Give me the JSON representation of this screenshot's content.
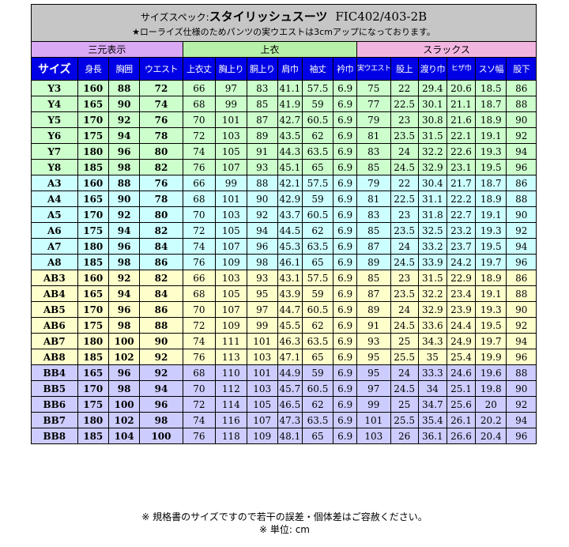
{
  "title": {
    "prefix": "サイズスペック:",
    "main": "スタイリッシュスーツ",
    "code": "FIC402/403-2B",
    "note": "★ローライズ仕様のためパンツの実ウエストは3cmアップになっております。"
  },
  "groups": [
    "三元表示",
    "上衣",
    "スラックス"
  ],
  "headers": [
    "サイズ",
    "身長",
    "胸囲",
    "ウエスト",
    "上衣丈",
    "胸上り",
    "胴上り",
    "肩巾",
    "袖丈",
    "衿巾",
    "実ウエスト",
    "股上",
    "渡り巾",
    "ヒザ巾",
    "スソ幅",
    "股下"
  ],
  "rows": [
    {
      "g": "Y",
      "c": [
        "Y3",
        "160",
        "88",
        "72",
        "66",
        "97",
        "83",
        "41.1",
        "57.5",
        "6.9",
        "75",
        "22",
        "29.4",
        "20.6",
        "18.5",
        "86"
      ]
    },
    {
      "g": "Y",
      "c": [
        "Y4",
        "165",
        "90",
        "74",
        "68",
        "99",
        "85",
        "41.9",
        "59",
        "6.9",
        "77",
        "22.5",
        "30.1",
        "21.1",
        "18.7",
        "88"
      ]
    },
    {
      "g": "Y",
      "c": [
        "Y5",
        "170",
        "92",
        "76",
        "70",
        "101",
        "87",
        "42.7",
        "60.5",
        "6.9",
        "79",
        "23",
        "30.8",
        "21.6",
        "18.9",
        "90"
      ]
    },
    {
      "g": "Y",
      "c": [
        "Y6",
        "175",
        "94",
        "78",
        "72",
        "103",
        "89",
        "43.5",
        "62",
        "6.9",
        "81",
        "23.5",
        "31.5",
        "22.1",
        "19.1",
        "92"
      ]
    },
    {
      "g": "Y",
      "c": [
        "Y7",
        "180",
        "96",
        "80",
        "74",
        "105",
        "91",
        "44.3",
        "63.5",
        "6.9",
        "83",
        "24",
        "32.2",
        "22.6",
        "19.3",
        "94"
      ]
    },
    {
      "g": "Y",
      "c": [
        "Y8",
        "185",
        "98",
        "82",
        "76",
        "107",
        "93",
        "45.1",
        "65",
        "6.9",
        "85",
        "24.5",
        "32.9",
        "23.1",
        "19.5",
        "96"
      ]
    },
    {
      "g": "A",
      "c": [
        "A3",
        "160",
        "88",
        "76",
        "66",
        "99",
        "88",
        "42.1",
        "57.5",
        "6.9",
        "79",
        "22",
        "30.4",
        "21.7",
        "18.7",
        "86"
      ]
    },
    {
      "g": "A",
      "c": [
        "A4",
        "165",
        "90",
        "78",
        "68",
        "101",
        "90",
        "42.9",
        "59",
        "6.9",
        "81",
        "22.5",
        "31.1",
        "22.2",
        "18.9",
        "88"
      ]
    },
    {
      "g": "A",
      "c": [
        "A5",
        "170",
        "92",
        "80",
        "70",
        "103",
        "92",
        "43.7",
        "60.5",
        "6.9",
        "83",
        "23",
        "31.8",
        "22.7",
        "19.1",
        "90"
      ]
    },
    {
      "g": "A",
      "c": [
        "A6",
        "175",
        "94",
        "82",
        "72",
        "105",
        "94",
        "44.5",
        "62",
        "6.9",
        "85",
        "23.5",
        "32.5",
        "23.2",
        "19.3",
        "92"
      ]
    },
    {
      "g": "A",
      "c": [
        "A7",
        "180",
        "96",
        "84",
        "74",
        "107",
        "96",
        "45.3",
        "63.5",
        "6.9",
        "87",
        "24",
        "33.2",
        "23.7",
        "19.5",
        "94"
      ]
    },
    {
      "g": "A",
      "c": [
        "A8",
        "185",
        "98",
        "86",
        "76",
        "109",
        "98",
        "46.1",
        "65",
        "6.9",
        "89",
        "24.5",
        "33.9",
        "24.2",
        "19.7",
        "96"
      ]
    },
    {
      "g": "AB",
      "c": [
        "AB3",
        "160",
        "92",
        "82",
        "66",
        "103",
        "93",
        "43.1",
        "57.5",
        "6.9",
        "85",
        "23",
        "31.5",
        "22.9",
        "18.9",
        "86"
      ]
    },
    {
      "g": "AB",
      "c": [
        "AB4",
        "165",
        "94",
        "84",
        "68",
        "105",
        "95",
        "43.9",
        "59",
        "6.9",
        "87",
        "23.5",
        "32.2",
        "23.4",
        "19.1",
        "88"
      ]
    },
    {
      "g": "AB",
      "c": [
        "AB5",
        "170",
        "96",
        "86",
        "70",
        "107",
        "97",
        "44.7",
        "60.5",
        "6.9",
        "89",
        "24",
        "32.9",
        "23.9",
        "19.3",
        "90"
      ]
    },
    {
      "g": "AB",
      "c": [
        "AB6",
        "175",
        "98",
        "88",
        "72",
        "109",
        "99",
        "45.5",
        "62",
        "6.9",
        "91",
        "24.5",
        "33.6",
        "24.4",
        "19.5",
        "92"
      ]
    },
    {
      "g": "AB",
      "c": [
        "AB7",
        "180",
        "100",
        "90",
        "74",
        "111",
        "101",
        "46.3",
        "63.5",
        "6.9",
        "93",
        "25",
        "34.3",
        "24.9",
        "19.7",
        "94"
      ]
    },
    {
      "g": "AB",
      "c": [
        "AB8",
        "185",
        "102",
        "92",
        "76",
        "113",
        "103",
        "47.1",
        "65",
        "6.9",
        "95",
        "25.5",
        "35",
        "25.4",
        "19.9",
        "96"
      ]
    },
    {
      "g": "BB",
      "c": [
        "BB4",
        "165",
        "96",
        "92",
        "68",
        "110",
        "101",
        "44.9",
        "59",
        "6.9",
        "95",
        "24",
        "33.3",
        "24.6",
        "19.6",
        "88"
      ]
    },
    {
      "g": "BB",
      "c": [
        "BB5",
        "170",
        "98",
        "94",
        "70",
        "112",
        "103",
        "45.7",
        "60.5",
        "6.9",
        "97",
        "24.5",
        "34",
        "25.1",
        "19.8",
        "90"
      ]
    },
    {
      "g": "BB",
      "c": [
        "BB6",
        "175",
        "100",
        "96",
        "72",
        "114",
        "105",
        "46.5",
        "62",
        "6.9",
        "99",
        "25",
        "34.7",
        "25.6",
        "20",
        "92"
      ]
    },
    {
      "g": "BB",
      "c": [
        "BB7",
        "180",
        "102",
        "98",
        "74",
        "116",
        "107",
        "47.3",
        "63.5",
        "6.9",
        "101",
        "25.5",
        "35.4",
        "26.1",
        "20.2",
        "94"
      ]
    },
    {
      "g": "BB",
      "c": [
        "BB8",
        "185",
        "104",
        "100",
        "76",
        "118",
        "109",
        "48.1",
        "65",
        "6.9",
        "103",
        "26",
        "36.1",
        "26.6",
        "20.4",
        "96"
      ]
    }
  ],
  "footer": {
    "line1": "※ 規格書のサイズですので若干の誤差・個体差はご容赦ください。",
    "line2": "※ 単位: cm"
  },
  "colors": {
    "header_bg": "#0000e6",
    "title_bg": "#c6c6c6",
    "group_sanngen": "#d9a9f5",
    "group_jacket": "#b7f0a8",
    "group_slacks": "#f2b5e0",
    "rows_Y": "#ccffcc",
    "rows_A": "#ccffff",
    "rows_AB": "#ffffcc",
    "rows_BB": "#ccccff"
  }
}
